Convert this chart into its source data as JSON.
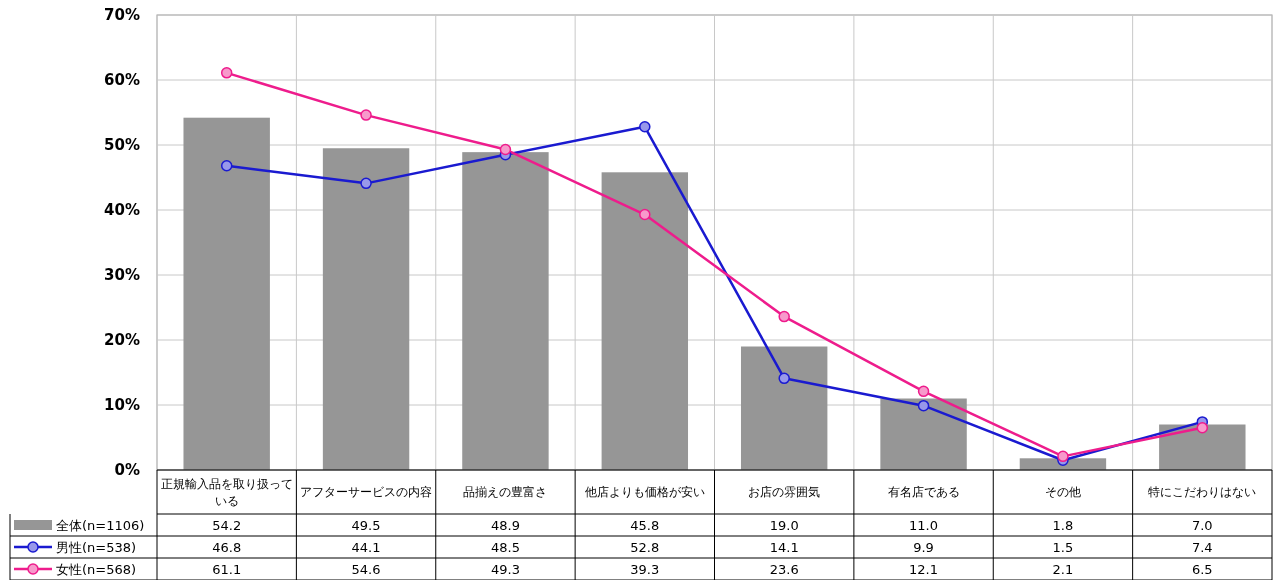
{
  "chart_data": {
    "type": "bar",
    "categories": [
      "正規輸入品を取り扱っている",
      "アフターサービスの内容",
      "品揃えの豊富さ",
      "他店よりも価格が安い",
      "お店の雰囲気",
      "有名店である",
      "その他",
      "特にこだわりはない"
    ],
    "series": [
      {
        "name": "全体(n=1106)",
        "color": "#969696",
        "values": [
          54.2,
          49.5,
          48.9,
          45.8,
          19.0,
          11.0,
          1.8,
          7.0
        ],
        "value_labels": [
          "54.2",
          "49.5",
          "48.9",
          "45.8",
          "19.0",
          "11.0",
          "1.8",
          "7.0"
        ]
      },
      {
        "name": "男性(n=538)",
        "type": "line",
        "color": "#1a1ad0",
        "marker": "circle",
        "values": [
          46.8,
          44.1,
          48.5,
          52.8,
          14.1,
          9.9,
          1.5,
          7.4
        ],
        "value_labels": [
          "46.8",
          "44.1",
          "48.5",
          "52.8",
          "14.1",
          "9.9",
          "1.5",
          "7.4"
        ]
      },
      {
        "name": "女性(n=568)",
        "type": "line",
        "color": "#ee1c8c",
        "marker": "circle",
        "values": [
          61.1,
          54.6,
          49.3,
          39.3,
          23.6,
          12.1,
          2.1,
          6.5
        ],
        "value_labels": [
          "61.1",
          "54.6",
          "49.3",
          "39.3",
          "23.6",
          "12.1",
          "2.1",
          "6.5"
        ]
      }
    ],
    "ylim": [
      0,
      70
    ],
    "yticks": [
      {
        "value": 0,
        "label": "0%"
      },
      {
        "value": 10,
        "label": "10%"
      },
      {
        "value": 20,
        "label": "20%"
      },
      {
        "value": 30,
        "label": "30%"
      },
      {
        "value": 40,
        "label": "40%"
      },
      {
        "value": 50,
        "label": "50%"
      },
      {
        "value": 60,
        "label": "60%"
      },
      {
        "value": 70,
        "label": "70%"
      }
    ],
    "grid": true,
    "legend": "bottom left"
  }
}
